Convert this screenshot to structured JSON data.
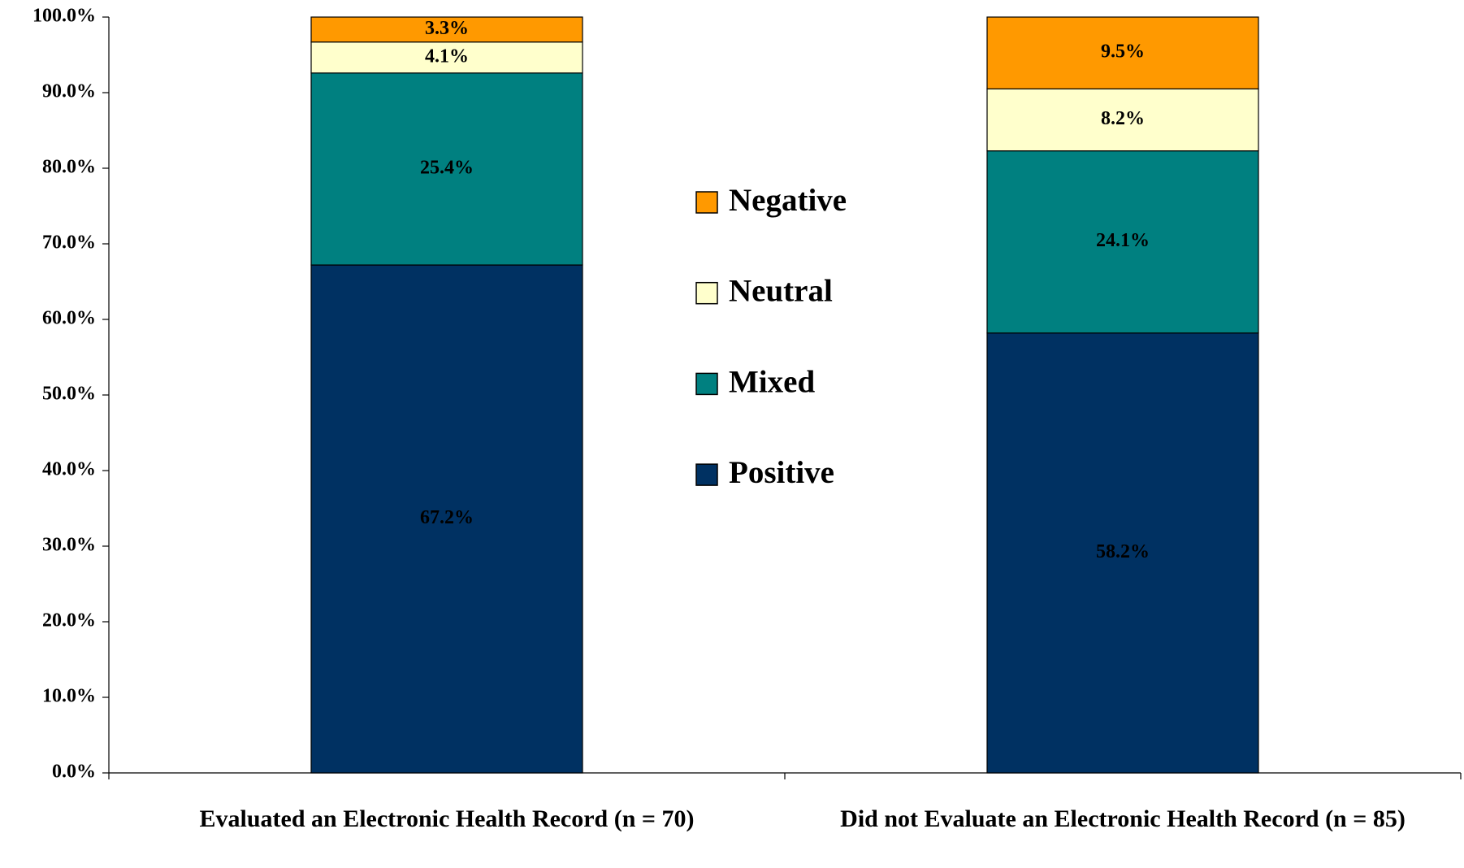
{
  "chart_data": {
    "type": "stacked_bar",
    "categories": [
      "Evaluated an Electronic Health Record (n = 70)",
      "Did not Evaluate an Electronic Health Record (n = 85)"
    ],
    "series": [
      {
        "name": "Positive",
        "color": "#003162",
        "values": [
          67.2,
          58.2
        ],
        "value_labels": [
          "67.2%",
          "58.2%"
        ]
      },
      {
        "name": "Mixed",
        "color": "#008080",
        "values": [
          25.4,
          24.1
        ],
        "value_labels": [
          "25.4%",
          "24.1%"
        ]
      },
      {
        "name": "Neutral",
        "color": "#ffffcc",
        "values": [
          4.1,
          8.2
        ],
        "value_labels": [
          "4.1%",
          "8.2%"
        ]
      },
      {
        "name": "Negative",
        "color": "#ff9900",
        "values": [
          3.3,
          9.5
        ],
        "value_labels": [
          "3.3%",
          "9.5%"
        ]
      }
    ],
    "ylim": [
      0,
      100
    ],
    "yticks": [
      {
        "value": 0,
        "label": "0.0%"
      },
      {
        "value": 10,
        "label": "10.0%"
      },
      {
        "value": 20,
        "label": "20.0%"
      },
      {
        "value": 30,
        "label": "30.0%"
      },
      {
        "value": 40,
        "label": "40.0%"
      },
      {
        "value": 50,
        "label": "50.0%"
      },
      {
        "value": 60,
        "label": "60.0%"
      },
      {
        "value": 70,
        "label": "70.0%"
      },
      {
        "value": 80,
        "label": "80.0%"
      },
      {
        "value": 90,
        "label": "90.0%"
      },
      {
        "value": 100,
        "label": "100.0%"
      }
    ],
    "legend": "center"
  }
}
